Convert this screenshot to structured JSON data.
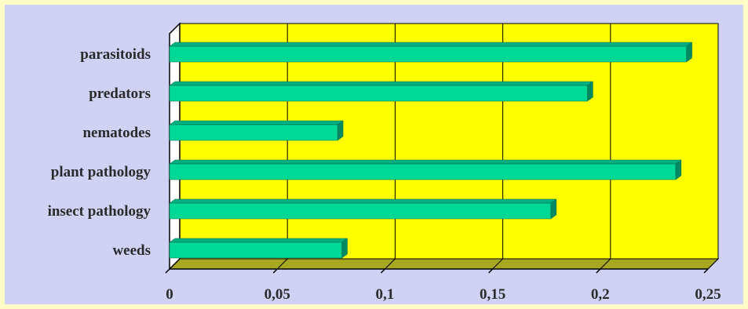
{
  "chart_data": {
    "type": "bar",
    "orientation": "horizontal",
    "categories": [
      "parasitoids",
      "predators",
      "nematodes",
      "plant pathology",
      "insect pathology",
      "weeds"
    ],
    "values": [
      0.24,
      0.194,
      0.078,
      0.235,
      0.177,
      0.08
    ],
    "xlim": [
      0,
      0.25
    ],
    "xticks": [
      "0",
      "0,05",
      "0,1",
      "0,15",
      "0,2",
      "0,25"
    ],
    "grid": true,
    "three_d": true,
    "colors": {
      "background": "#cfd2f4",
      "border": "#fffcc8",
      "plot_area": "#ffff00",
      "floor": "#a8a820",
      "bar_face": "#00d896",
      "bar_top": "#00b080",
      "bar_side": "#008a62",
      "grid": "#000000"
    }
  }
}
